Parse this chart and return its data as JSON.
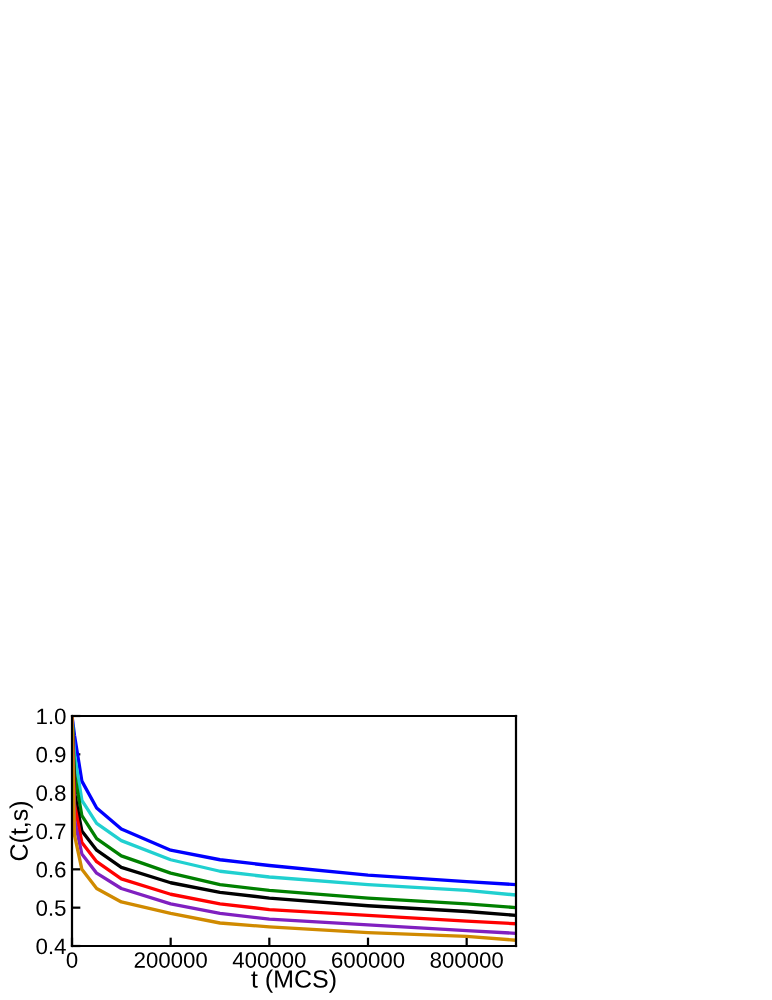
{
  "chart_data": {
    "type": "line",
    "xlabel": "t (MCS)",
    "ylabel": "C(t,s)",
    "x": [
      0,
      5000,
      20000,
      50000,
      100000,
      200000,
      300000,
      400000,
      600000,
      800000,
      900000
    ],
    "xlim": [
      0,
      900000
    ],
    "ylim": [
      0.4,
      1.0
    ],
    "xticks": [
      0,
      200000,
      400000,
      600000,
      800000
    ],
    "yticks": [
      0.4,
      0.5,
      0.6,
      0.7,
      0.8,
      0.9,
      {
        "value": 1.0,
        "label": "1.0"
      }
    ],
    "grid": false,
    "legend": false,
    "marker": "none",
    "line_style": "solid",
    "series": [
      {
        "color": "#0000ff",
        "values": [
          1.0,
          0.95,
          0.83,
          0.76,
          0.705,
          0.65,
          0.625,
          0.61,
          0.585,
          0.568,
          0.56
        ]
      },
      {
        "color": "#20d0d0",
        "values": [
          1.0,
          0.9,
          0.78,
          0.72,
          0.675,
          0.625,
          0.595,
          0.58,
          0.56,
          0.545,
          0.533
        ]
      },
      {
        "color": "#008000",
        "values": [
          1.0,
          0.85,
          0.74,
          0.68,
          0.635,
          0.59,
          0.56,
          0.545,
          0.525,
          0.51,
          0.5
        ]
      },
      {
        "color": "#000000",
        "values": [
          1.0,
          0.8,
          0.7,
          0.65,
          0.605,
          0.565,
          0.54,
          0.525,
          0.505,
          0.49,
          0.48
        ]
      },
      {
        "color": "#ff0000",
        "values": [
          1.0,
          0.77,
          0.67,
          0.62,
          0.575,
          0.535,
          0.51,
          0.495,
          0.48,
          0.465,
          0.458
        ]
      },
      {
        "color": "#8020c0",
        "values": [
          1.0,
          0.73,
          0.64,
          0.59,
          0.55,
          0.51,
          0.485,
          0.47,
          0.455,
          0.44,
          0.433
        ]
      },
      {
        "color": "#d08a00",
        "values": [
          1.0,
          0.69,
          0.6,
          0.55,
          0.515,
          0.485,
          0.46,
          0.45,
          0.435,
          0.425,
          0.415
        ]
      }
    ]
  }
}
